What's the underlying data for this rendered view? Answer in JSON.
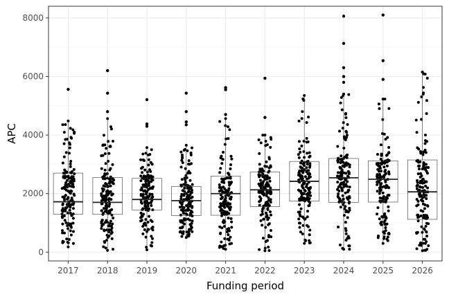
{
  "chart_data": {
    "type": "box",
    "xlabel": "Funding period",
    "ylabel": "APC",
    "ylim": [
      -300,
      8400
    ],
    "yticks": [
      0,
      2000,
      4000,
      6000,
      8000
    ],
    "grid": true,
    "categories": [
      "2017",
      "2018",
      "2019",
      "2020",
      "2021",
      "2022",
      "2023",
      "2024",
      "2025",
      "2026"
    ],
    "boxes": [
      {
        "category": "2017",
        "min": 180,
        "q1": 1300,
        "median": 1720,
        "q3": 2700,
        "max": 4480
      },
      {
        "category": "2018",
        "min": 60,
        "q1": 1290,
        "median": 1700,
        "q3": 2550,
        "max": 4560
      },
      {
        "category": "2019",
        "min": 80,
        "q1": 1440,
        "median": 1800,
        "q3": 2520,
        "max": 3570
      },
      {
        "category": "2020",
        "min": 500,
        "q1": 1250,
        "median": 1760,
        "q3": 2240,
        "max": 3650
      },
      {
        "category": "2021",
        "min": 100,
        "q1": 1260,
        "median": 2000,
        "q3": 2600,
        "max": 4560
      },
      {
        "category": "2022",
        "min": 50,
        "q1": 1560,
        "median": 2130,
        "q3": 2740,
        "max": 4000
      },
      {
        "category": "2023",
        "min": 300,
        "q1": 1740,
        "median": 2420,
        "q3": 3100,
        "max": 5350
      },
      {
        "category": "2024",
        "min": 100,
        "q1": 1700,
        "median": 2540,
        "q3": 3200,
        "max": 5400
      },
      {
        "category": "2025",
        "min": 300,
        "q1": 1710,
        "median": 2490,
        "q3": 3120,
        "max": 5230
      },
      {
        "category": "2026",
        "min": 50,
        "q1": 1120,
        "median": 2060,
        "q3": 3150,
        "max": 6150
      }
    ],
    "outliers": [
      {
        "category": "2017",
        "values": [
          5560
        ]
      },
      {
        "category": "2018",
        "values": [
          4800,
          5430,
          6200
        ]
      },
      {
        "category": "2019",
        "values": [
          4300,
          4380,
          5210
        ]
      },
      {
        "category": "2020",
        "values": [
          4350,
          4450,
          4800,
          5430
        ]
      },
      {
        "category": "2021",
        "values": [
          4700,
          5550,
          5620
        ]
      },
      {
        "category": "2022",
        "values": [
          4600,
          5940
        ]
      },
      {
        "category": "2024",
        "values": [
          5800,
          6000,
          6300,
          7130,
          8060
        ]
      },
      {
        "category": "2025",
        "values": [
          5900,
          6540,
          8100
        ]
      }
    ]
  }
}
